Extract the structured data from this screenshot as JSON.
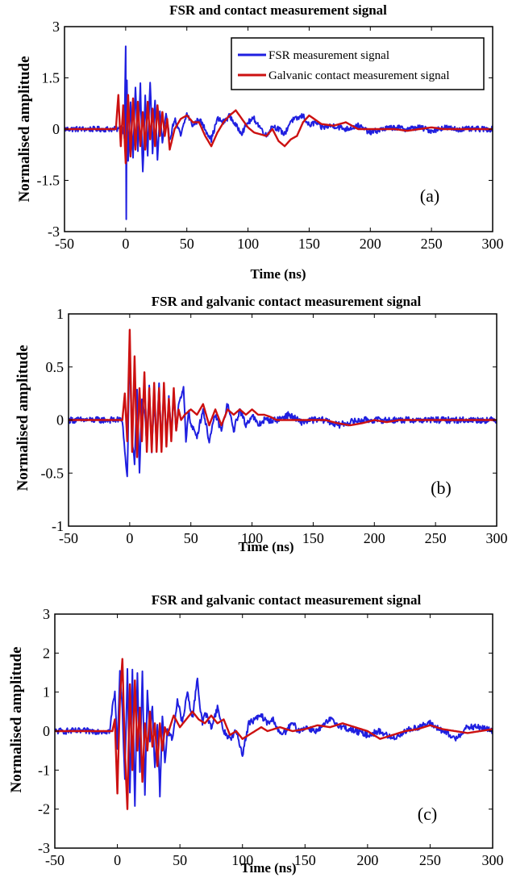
{
  "colors": {
    "fsr": "#1f1fe0",
    "galvanic": "#cc1111"
  },
  "legend": {
    "fsr_label": "FSR measurement signal",
    "galvanic_label": "Galvanic contact measurement signal"
  },
  "chart_data": [
    {
      "type": "line",
      "panel": "(a)",
      "title": "FSR and contact measurement signal",
      "xlabel": "Time (ns)",
      "ylabel": "Normalised amplitude",
      "xlim": [
        -50,
        300
      ],
      "ylim": [
        -3,
        3
      ],
      "xticks": [
        -50,
        0,
        50,
        100,
        150,
        200,
        250,
        300
      ],
      "yticks": [
        3,
        1.5,
        0,
        -1.5,
        -3
      ],
      "ytick_labels": [
        "3",
        "1.5",
        "0",
        "-1.5",
        "-3"
      ],
      "legend": true,
      "legend_position": "top-right",
      "series": [
        {
          "name": "FSR measurement signal",
          "color_key": "fsr",
          "noise": 0.08,
          "x": [
            -50,
            -5,
            -3,
            -1,
            0,
            0.5,
            1,
            2,
            4,
            6,
            8,
            10,
            12,
            14,
            16,
            18,
            20,
            22,
            24,
            26,
            28,
            30,
            33,
            36,
            40,
            45,
            50,
            55,
            60,
            65,
            70,
            75,
            80,
            85,
            90,
            95,
            100,
            105,
            110,
            115,
            120,
            125,
            130,
            135,
            140,
            145,
            150,
            155,
            160,
            170,
            180,
            190,
            200,
            210,
            220,
            230,
            240,
            250,
            260,
            270,
            280,
            290,
            300
          ],
          "y": [
            0,
            0,
            0.1,
            -0.2,
            2.5,
            -2.6,
            1.5,
            -1,
            0.8,
            -0.8,
            1.2,
            -0.6,
            1.3,
            -1.3,
            1.0,
            -0.8,
            1.4,
            -0.7,
            0.9,
            -0.9,
            0.5,
            -0.4,
            0.4,
            -0.3,
            0.3,
            -0.2,
            0.45,
            0.1,
            0.3,
            0.0,
            -0.3,
            0.3,
            0.2,
            0.4,
            0.1,
            -0.1,
            0.2,
            0.3,
            0.05,
            -0.2,
            0.1,
            0.0,
            -0.15,
            0.25,
            0.3,
            0.4,
            0.1,
            0.2,
            0.05,
            0.1,
            0.0,
            0.1,
            -0.1,
            0.0,
            0.05,
            0.0,
            0.05,
            -0.05,
            0.05,
            0.0,
            0.0,
            0.0,
            0.0
          ]
        },
        {
          "name": "Galvanic contact measurement signal",
          "color_key": "galvanic",
          "noise": 0.0,
          "x": [
            -50,
            -8,
            -6,
            -4,
            -2,
            0,
            2,
            4,
            6,
            8,
            10,
            12,
            14,
            16,
            18,
            20,
            22,
            24,
            26,
            28,
            30,
            32,
            34,
            36,
            38,
            40,
            45,
            50,
            55,
            60,
            65,
            70,
            75,
            80,
            85,
            90,
            95,
            100,
            105,
            110,
            115,
            120,
            125,
            130,
            135,
            140,
            145,
            150,
            160,
            170,
            180,
            190,
            200,
            210,
            220,
            230,
            240,
            250,
            260,
            270,
            280,
            290,
            300
          ],
          "y": [
            0,
            0,
            1.0,
            -0.5,
            0.7,
            -1.0,
            1.0,
            -0.8,
            0.9,
            -0.6,
            0.8,
            -0.5,
            0.5,
            -0.6,
            0.8,
            -0.3,
            0.6,
            -0.5,
            0.7,
            -0.2,
            0.5,
            -0.2,
            0.3,
            -0.6,
            -0.3,
            0.0,
            0.3,
            0.4,
            0.2,
            0.2,
            -0.2,
            -0.5,
            -0.1,
            0.2,
            0.4,
            0.55,
            0.3,
            0.05,
            -0.1,
            -0.15,
            -0.2,
            0.0,
            -0.35,
            -0.5,
            -0.3,
            -0.2,
            0.2,
            0.4,
            0.15,
            0.1,
            0.2,
            0.0,
            0.0,
            0.0,
            0.0,
            -0.05,
            0.0,
            0.05,
            0.0,
            0.0,
            0.0,
            0.0,
            0.0
          ]
        }
      ]
    },
    {
      "type": "line",
      "panel": "(b)",
      "title": "FSR and galvanic contact measurement signal",
      "xlabel": "Time (ns)",
      "ylabel": "Normalised amplitude",
      "xlim": [
        -50,
        300
      ],
      "ylim": [
        -1,
        1
      ],
      "xticks": [
        -50,
        0,
        50,
        100,
        150,
        200,
        250,
        300
      ],
      "yticks": [
        1,
        0.5,
        0,
        -0.5,
        -1
      ],
      "ytick_labels": [
        "1",
        "0.5",
        "0",
        "-0.5",
        "-1"
      ],
      "legend": false,
      "series": [
        {
          "name": "FSR measurement signal",
          "color_key": "fsr",
          "noise": 0.03,
          "x": [
            -50,
            -6,
            -4,
            -2,
            0,
            1,
            2,
            4,
            6,
            8,
            10,
            12,
            14,
            16,
            18,
            20,
            22,
            24,
            26,
            28,
            30,
            32,
            34,
            36,
            38,
            40,
            42,
            44,
            46,
            48,
            50,
            55,
            60,
            65,
            70,
            75,
            80,
            85,
            90,
            95,
            100,
            105,
            110,
            115,
            120,
            130,
            140,
            150,
            160,
            170,
            180,
            190,
            200,
            210,
            220,
            230,
            240,
            250,
            260,
            270,
            280,
            290,
            300
          ],
          "y": [
            0,
            0,
            -0.3,
            -0.55,
            0.7,
            0.2,
            -0.2,
            -0.4,
            0.3,
            -0.5,
            0.2,
            0.1,
            -0.2,
            0.3,
            -0.3,
            0.2,
            -0.2,
            0.35,
            -0.25,
            0.3,
            -0.2,
            0.2,
            -0.15,
            0.25,
            -0.1,
            0.15,
            0.2,
            0.3,
            -0.2,
            0.1,
            -0.05,
            -0.15,
            0.1,
            -0.2,
            0.05,
            -0.1,
            0.15,
            -0.1,
            0.1,
            -0.05,
            0.05,
            -0.05,
            0.0,
            0.0,
            0.0,
            0.05,
            -0.02,
            0.0,
            0.0,
            -0.05,
            -0.02,
            0.0,
            0.0,
            0.0,
            0.0,
            0.0,
            0.0,
            0.0,
            0.0,
            0.0,
            0.0,
            0.0,
            0.0
          ]
        },
        {
          "name": "Galvanic contact measurement signal",
          "color_key": "galvanic",
          "noise": 0.0,
          "x": [
            -50,
            -6,
            -4,
            -2,
            0,
            2,
            4,
            6,
            8,
            10,
            12,
            14,
            16,
            18,
            20,
            22,
            24,
            26,
            28,
            30,
            32,
            34,
            36,
            38,
            40,
            42,
            45,
            50,
            55,
            60,
            65,
            70,
            75,
            80,
            85,
            90,
            95,
            100,
            105,
            110,
            115,
            120,
            130,
            140,
            150,
            160,
            170,
            180,
            190,
            200,
            210,
            220,
            230,
            240,
            250,
            260,
            270,
            280,
            290,
            300
          ],
          "y": [
            0,
            0,
            0.25,
            -0.2,
            0.85,
            -0.3,
            0.6,
            -0.35,
            0.3,
            -0.2,
            0.45,
            -0.3,
            0.3,
            -0.3,
            0.35,
            -0.3,
            0.3,
            -0.3,
            0.35,
            -0.25,
            0.2,
            -0.2,
            0.3,
            -0.1,
            0.1,
            0.0,
            0.05,
            0.1,
            0.05,
            0.15,
            -0.05,
            0.1,
            -0.05,
            0.1,
            0.05,
            0.1,
            0.05,
            0.1,
            0.05,
            0.05,
            0.03,
            0.0,
            0.0,
            0.0,
            0.0,
            0.0,
            -0.03,
            -0.05,
            -0.03,
            0.0,
            -0.02,
            0.0,
            0.0,
            0.0,
            0.0,
            0.0,
            0.0,
            0.0,
            0.0,
            0.0
          ]
        }
      ]
    },
    {
      "type": "line",
      "panel": "(c)",
      "title": "FSR and galvanic contact measurement signal",
      "xlabel": "Time (ns)",
      "ylabel": "Normalised amplitude",
      "xlim": [
        -50,
        300
      ],
      "ylim": [
        -3,
        3
      ],
      "xticks": [
        -50,
        0,
        50,
        100,
        150,
        200,
        250,
        300
      ],
      "yticks": [
        3,
        2,
        1,
        0,
        -1,
        -2,
        -3
      ],
      "ytick_labels": [
        "3",
        "2",
        "1",
        "0",
        "-1",
        "-2",
        "-3"
      ],
      "legend": false,
      "series": [
        {
          "name": "FSR measurement signal",
          "color_key": "fsr",
          "noise": 0.08,
          "x": [
            -50,
            -6,
            -4,
            -2,
            0,
            2,
            4,
            6,
            8,
            10,
            12,
            14,
            16,
            18,
            20,
            22,
            24,
            26,
            28,
            30,
            32,
            34,
            36,
            38,
            40,
            44,
            48,
            52,
            56,
            60,
            64,
            66,
            68,
            70,
            75,
            80,
            85,
            90,
            95,
            100,
            105,
            110,
            115,
            120,
            125,
            130,
            135,
            140,
            145,
            150,
            160,
            170,
            180,
            190,
            200,
            210,
            220,
            230,
            240,
            250,
            260,
            270,
            280,
            290,
            300
          ],
          "y": [
            0,
            0,
            0.6,
            1.0,
            -0.5,
            1.6,
            0.5,
            -1.2,
            1.6,
            -1.6,
            1.5,
            -2.0,
            1.5,
            -1.0,
            1.5,
            -1.6,
            1.0,
            -0.2,
            0.7,
            -1.0,
            0.2,
            -1.6,
            0.4,
            -0.8,
            0.0,
            -0.2,
            0.8,
            0.2,
            1.0,
            0.3,
            1.4,
            0.6,
            0.2,
            0.5,
            0.1,
            0.6,
            0.0,
            -0.2,
            0.0,
            -0.6,
            0.2,
            0.3,
            0.4,
            0.2,
            0.3,
            -0.1,
            0.0,
            0.2,
            0.0,
            0.1,
            0.0,
            0.3,
            0.1,
            0.0,
            -0.1,
            0.0,
            -0.2,
            0.0,
            0.1,
            0.2,
            0.0,
            -0.2,
            0.1,
            0.1,
            0.0
          ]
        },
        {
          "name": "Galvanic contact measurement signal",
          "color_key": "galvanic",
          "noise": 0.0,
          "x": [
            -50,
            -4,
            -2,
            0,
            2,
            4,
            6,
            8,
            10,
            12,
            14,
            16,
            18,
            20,
            22,
            24,
            26,
            28,
            30,
            32,
            34,
            36,
            38,
            40,
            45,
            50,
            55,
            60,
            65,
            70,
            75,
            80,
            85,
            90,
            95,
            100,
            105,
            110,
            115,
            120,
            125,
            130,
            140,
            150,
            160,
            170,
            180,
            190,
            200,
            210,
            220,
            230,
            240,
            250,
            260,
            270,
            280,
            290,
            300
          ],
          "y": [
            0,
            0,
            0.3,
            -1.6,
            0.8,
            1.85,
            -0.5,
            -2.0,
            1.2,
            -1.0,
            1.3,
            -0.5,
            0.6,
            -1.3,
            0.2,
            -0.5,
            0.5,
            -0.4,
            0.2,
            -0.9,
            0.2,
            -0.5,
            0.1,
            -0.1,
            0.4,
            0.1,
            0.3,
            0.5,
            0.3,
            0.2,
            0.4,
            0.2,
            0.3,
            -0.1,
            0.0,
            -0.2,
            -0.1,
            0.0,
            0.1,
            0.0,
            0.05,
            0.1,
            0.0,
            0.05,
            0.15,
            0.1,
            0.2,
            0.1,
            0.0,
            -0.2,
            -0.1,
            0.0,
            0.05,
            0.15,
            0.05,
            0.0,
            -0.05,
            0.0,
            0.05
          ]
        }
      ]
    }
  ]
}
